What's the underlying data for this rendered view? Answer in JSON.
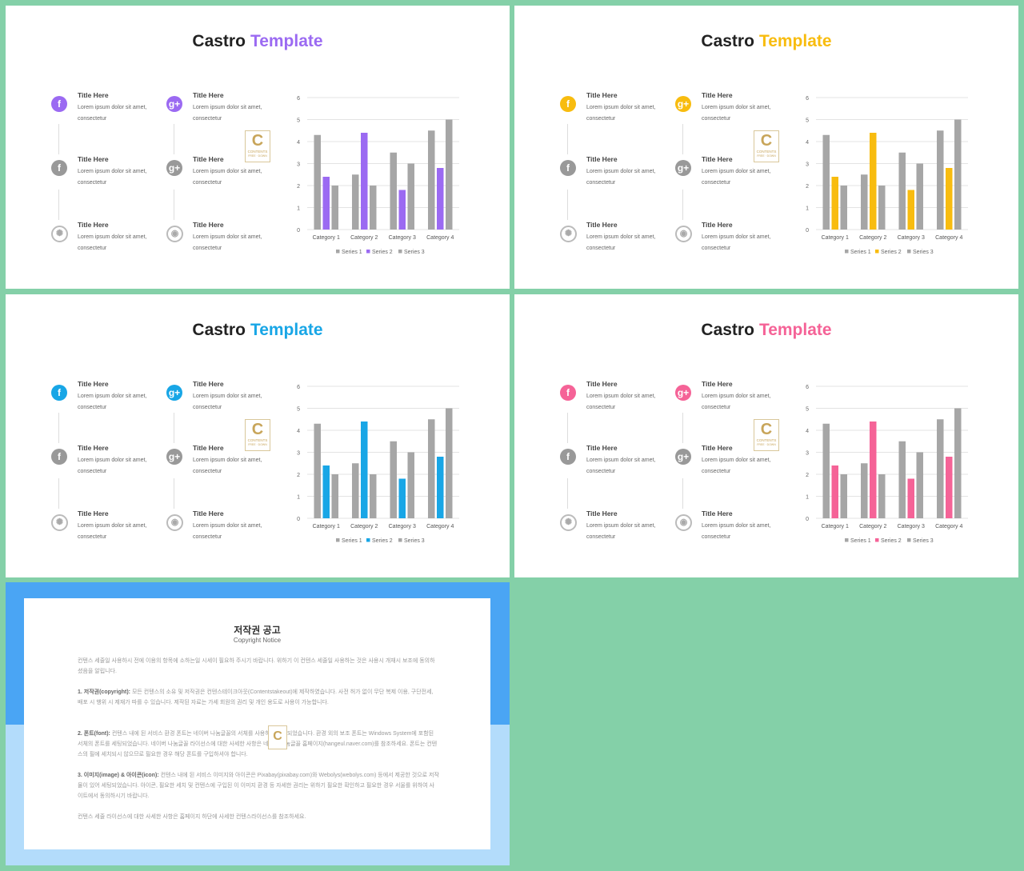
{
  "slides": [
    {
      "title_a": "Castro",
      "title_b": "Template",
      "accent": "#9b6af2",
      "active": [
        0,
        3
      ]
    },
    {
      "title_a": "Castro",
      "title_b": "Template",
      "accent": "#f8bc0f",
      "active": [
        0,
        3
      ]
    },
    {
      "title_a": "Castro",
      "title_b": "Template",
      "accent": "#18a6e6",
      "active": [
        0,
        3
      ]
    },
    {
      "title_a": "Castro",
      "title_b": "Template",
      "accent": "#f56397",
      "active": [
        0,
        3
      ]
    }
  ],
  "features": [
    {
      "title": "Title Here",
      "body": "Lorem ipsum dolor sit amet, consectetur",
      "icon": "facebook-icon",
      "glyph": "f"
    },
    {
      "title": "Title Here",
      "body": "Lorem ipsum dolor sit amet, consectetur",
      "icon": "facebook-icon",
      "glyph": "f"
    },
    {
      "title": "Title Here",
      "body": "Lorem ipsum dolor sit amet, consectetur",
      "icon": "dribbble-icon",
      "glyph": "✺"
    },
    {
      "title": "Title Here",
      "body": "Lorem ipsum dolor sit amet, consectetur",
      "icon": "google-plus-icon",
      "glyph": "g+"
    },
    {
      "title": "Title Here",
      "body": "Lorem ipsum dolor sit amet, consectetur",
      "icon": "google-plus-icon",
      "glyph": "g+"
    },
    {
      "title": "Title Here",
      "body": "Lorem ipsum dolor sit amet, consectetur",
      "icon": "eye-icon",
      "glyph": "◉"
    }
  ],
  "logo": {
    "letter": "C",
    "line1": "CONTENTS",
    "line2": "FREE · DOWN"
  },
  "chart_data": {
    "type": "bar",
    "categories": [
      "Category 1",
      "Category 2",
      "Category 3",
      "Category 4"
    ],
    "series": [
      {
        "name": "Series 1",
        "values": [
          4.3,
          2.5,
          3.5,
          4.5
        ]
      },
      {
        "name": "Series 2",
        "values": [
          2.4,
          4.4,
          1.8,
          2.8
        ]
      },
      {
        "name": "Series 3",
        "values": [
          2,
          2,
          3,
          5
        ]
      }
    ],
    "ylim": [
      0,
      6
    ],
    "yticks": [
      "0",
      "1",
      "2",
      "3",
      "4",
      "5",
      "6"
    ],
    "grid": true,
    "legend": "bottom",
    "gray": "#a6a6a6"
  },
  "copyright": {
    "title": "저작권 공고",
    "subtitle": "Copyright Notice",
    "p0": "컨텐스 세줄일 사용하시 전에 이용의 항목에 소하는일 시세이 필요하 주시기 바랍니다. 위하기 이 컨텐스 세줄일 사용하는 것은 사용시 개재시 보조에 동의하셨음을 알립니다.",
    "p1_lead": "1. 저작권(copyright):",
    "p1": " 모든 컨텐스의 소유 및 저작권은 컨텐스테이크아웃(Contentstakeout)에 제작하였습니다. 사전 허가 없이 무단 복제 이용, 구단전세, 배포 시 행위 시 제재가 따를 수 있습니다. 제작된 자료는 가세 회원의 권리 및 개인 용도로 사용이 가능합니다.",
    "p2_lead": "2. 폰트(font):",
    "p2": " 컨텐스 내에 된 서비스 환경 폰트는 네이버 나눔글꼴의 서체를 사용하시 제작되었습니다. 환경 외의 보조 폰트는 Windows System에 포함된 서체의 폰트를 세팅되었습니다. 네이버 나눔글꼴 라이선스에 대한 사세한 사항은 네이버 나눔글꼴 홈페이지(hangeul.naver.com)를 참조하세요. 폰트는 컨텐스의 필에 세치되시 않으므로 필요한 경우 해당 폰트를 구입하셔야 합니다.",
    "p3_lead": "3. 이미지(image) & 아이콘(icon):",
    "p3": " 컨텐스 내에 된 서비스 이미지와 아이콘은 Pixabay(pixabay.com)와 Webolys(webolys.com) 등에서 제공한 것으로 저작물이 있어 세팅되었습니다. 아이콘, 필요한 세치 및 컨텐스에 구입된 이 이미지 환경 등 자세한 권리는 위하기 필요한 확인하고 필요한 경우 서울를 위하여 사이트에서 동의하시기 바랍니다.",
    "p4": "컨텐스 세줄 라이선스에 대한 사세한 사항은 홈페이지 하단에 사세한 컨텐스라이선스를 참조하세요."
  }
}
